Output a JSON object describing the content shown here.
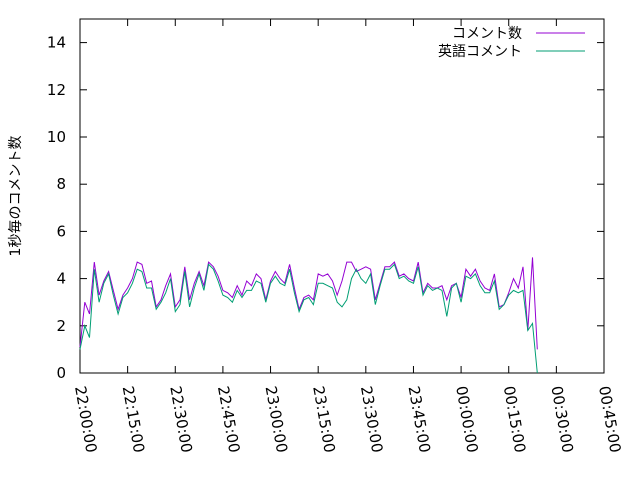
{
  "chart_data": {
    "type": "line",
    "ylabel": "1秒毎のコメント数",
    "xlabel": "",
    "ylim": [
      0,
      15
    ],
    "xlim": [
      "22:00:00",
      "00:45:00"
    ],
    "y_ticks": [
      0,
      2,
      4,
      6,
      8,
      10,
      12,
      14
    ],
    "x_ticks": [
      "22:00:00",
      "22:15:00",
      "22:30:00",
      "22:45:00",
      "23:00:00",
      "23:15:00",
      "23:30:00",
      "23:45:00",
      "00:00:00",
      "00:15:00",
      "00:30:00",
      "00:45:00"
    ],
    "x_tick_minutes": [
      0,
      15,
      30,
      45,
      60,
      75,
      90,
      105,
      120,
      135,
      150,
      165
    ],
    "legend_position": "top-right",
    "grid": false,
    "x_step_minutes": 1.5,
    "series": [
      {
        "name": "コメント数",
        "color": "#9400d3",
        "values": [
          1.1,
          3.0,
          2.5,
          4.7,
          3.3,
          3.9,
          4.3,
          3.5,
          2.7,
          3.3,
          3.6,
          4.0,
          4.7,
          4.6,
          3.8,
          3.9,
          2.8,
          3.1,
          3.7,
          4.2,
          2.8,
          3.1,
          4.5,
          3.1,
          3.8,
          4.3,
          3.7,
          4.7,
          4.5,
          4.1,
          3.5,
          3.4,
          3.2,
          3.7,
          3.3,
          3.9,
          3.7,
          4.2,
          4.0,
          3.1,
          3.9,
          4.3,
          4.0,
          3.8,
          4.6,
          3.6,
          2.7,
          3.2,
          3.3,
          3.1,
          4.2,
          4.1,
          4.2,
          3.9,
          3.3,
          3.9,
          4.7,
          4.7,
          4.3,
          4.4,
          4.5,
          4.4,
          3.1,
          3.8,
          4.5,
          4.5,
          4.7,
          4.1,
          4.2,
          4.0,
          3.9,
          4.7,
          3.4,
          3.8,
          3.6,
          3.6,
          3.7,
          3.1,
          3.7,
          3.8,
          3.2,
          4.4,
          4.1,
          4.4,
          3.9,
          3.6,
          3.5,
          4.2,
          2.8,
          2.9,
          3.4,
          4.0,
          3.6,
          4.5,
          1.8,
          4.9,
          1.0
        ],
        "note": ""
      },
      {
        "name": "英語コメント",
        "color": "#009e73",
        "values": [
          1.0,
          2.0,
          1.5,
          4.4,
          3.0,
          3.8,
          4.2,
          3.3,
          2.5,
          3.2,
          3.4,
          3.8,
          4.4,
          4.3,
          3.6,
          3.6,
          2.7,
          3.0,
          3.4,
          4.0,
          2.6,
          2.9,
          4.3,
          2.8,
          3.6,
          4.2,
          3.5,
          4.6,
          4.4,
          3.9,
          3.3,
          3.2,
          3.0,
          3.5,
          3.2,
          3.5,
          3.5,
          3.9,
          3.8,
          3.0,
          3.8,
          4.1,
          3.8,
          3.7,
          4.4,
          3.4,
          2.6,
          3.1,
          3.2,
          2.9,
          3.8,
          3.8,
          3.7,
          3.6,
          3.0,
          2.8,
          3.1,
          4.0,
          4.4,
          4.0,
          3.8,
          4.2,
          2.9,
          3.7,
          4.4,
          4.4,
          4.6,
          4.0,
          4.1,
          3.9,
          3.8,
          4.5,
          3.3,
          3.7,
          3.5,
          3.6,
          3.5,
          2.4,
          3.6,
          3.8,
          3.0,
          4.1,
          4.0,
          4.2,
          3.7,
          3.4,
          3.4,
          3.9,
          2.7,
          2.9,
          3.3,
          3.5,
          3.4,
          3.5,
          1.8,
          2.1,
          0.0
        ],
        "note": ""
      }
    ]
  }
}
